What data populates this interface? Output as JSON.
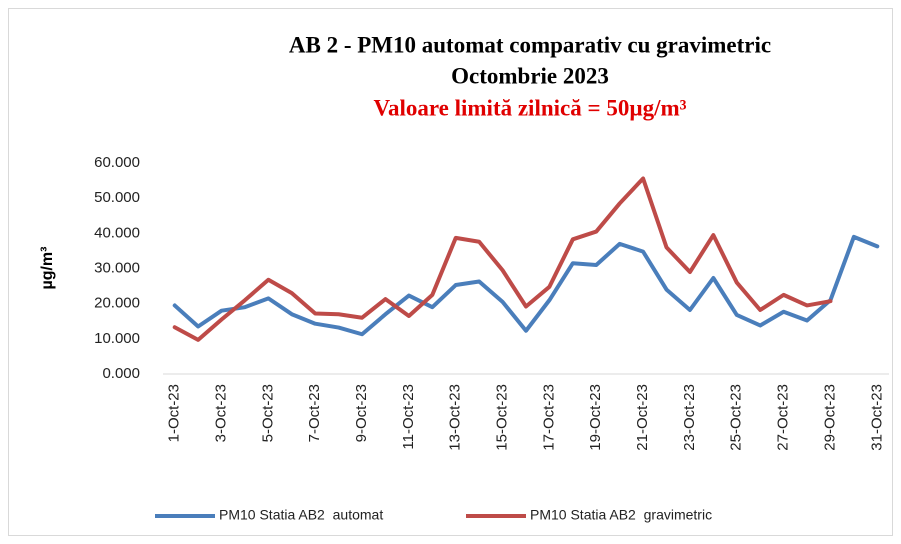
{
  "chart_data": {
    "type": "line",
    "title": "AB 2 - PM10 automat comparativ cu gravimetric",
    "subtitle": "Octombrie 2023",
    "annotation": "Valoare limită zilnică = 50µg/m³",
    "y_label": "µg/m³",
    "categories": [
      "1-Oct-23",
      null,
      "3-Oct-23",
      null,
      "5-Oct-23",
      null,
      "7-Oct-23",
      null,
      "9-Oct-23",
      null,
      "11-Oct-23",
      null,
      "13-Oct-23",
      null,
      "15-Oct-23",
      null,
      "17-Oct-23",
      null,
      "19-Oct-23",
      null,
      "21-Oct-23",
      null,
      "23-Oct-23",
      null,
      "25-Oct-23",
      null,
      "27-Oct-23",
      null,
      "29-Oct-23",
      null,
      "31-Oct-23"
    ],
    "series": [
      {
        "name": "PM10 Statia AB2  automat",
        "color": "#4a7ebb",
        "values": [
          19.5,
          13.5,
          18,
          19,
          21.5,
          17,
          14.3,
          13.2,
          11.3,
          17,
          22.3,
          19,
          25.3,
          26.3,
          20.5,
          12.3,
          21,
          31.5,
          31,
          37,
          34.8,
          24,
          18.2,
          27.3,
          16.8,
          13.8,
          17.7,
          15.2,
          21,
          39,
          36.3
        ]
      },
      {
        "name": "PM10 Statia AB2  gravimetric",
        "color": "#be4b48",
        "values": [
          13.3,
          9.7,
          15.5,
          21,
          26.8,
          23,
          17.2,
          17,
          16,
          21.3,
          16.5,
          22.5,
          38.7,
          37.6,
          29.5,
          19.2,
          24.8,
          38.3,
          40.5,
          48.5,
          55.6,
          36,
          29,
          39.5,
          26,
          18.2,
          22.5,
          19.5,
          20.7,
          null,
          null
        ]
      }
    ],
    "ylim": [
      0,
      60
    ],
    "yticks": [
      {
        "value": 0,
        "label": "0.000"
      },
      {
        "value": 10,
        "label": "10.000"
      },
      {
        "value": 20,
        "label": "20.000"
      },
      {
        "value": 30,
        "label": "30.000"
      },
      {
        "value": 40,
        "label": "40.000"
      },
      {
        "value": 50,
        "label": "50.000"
      },
      {
        "value": 60,
        "label": "60.000"
      }
    ],
    "grid": false,
    "legend": "bottom"
  }
}
